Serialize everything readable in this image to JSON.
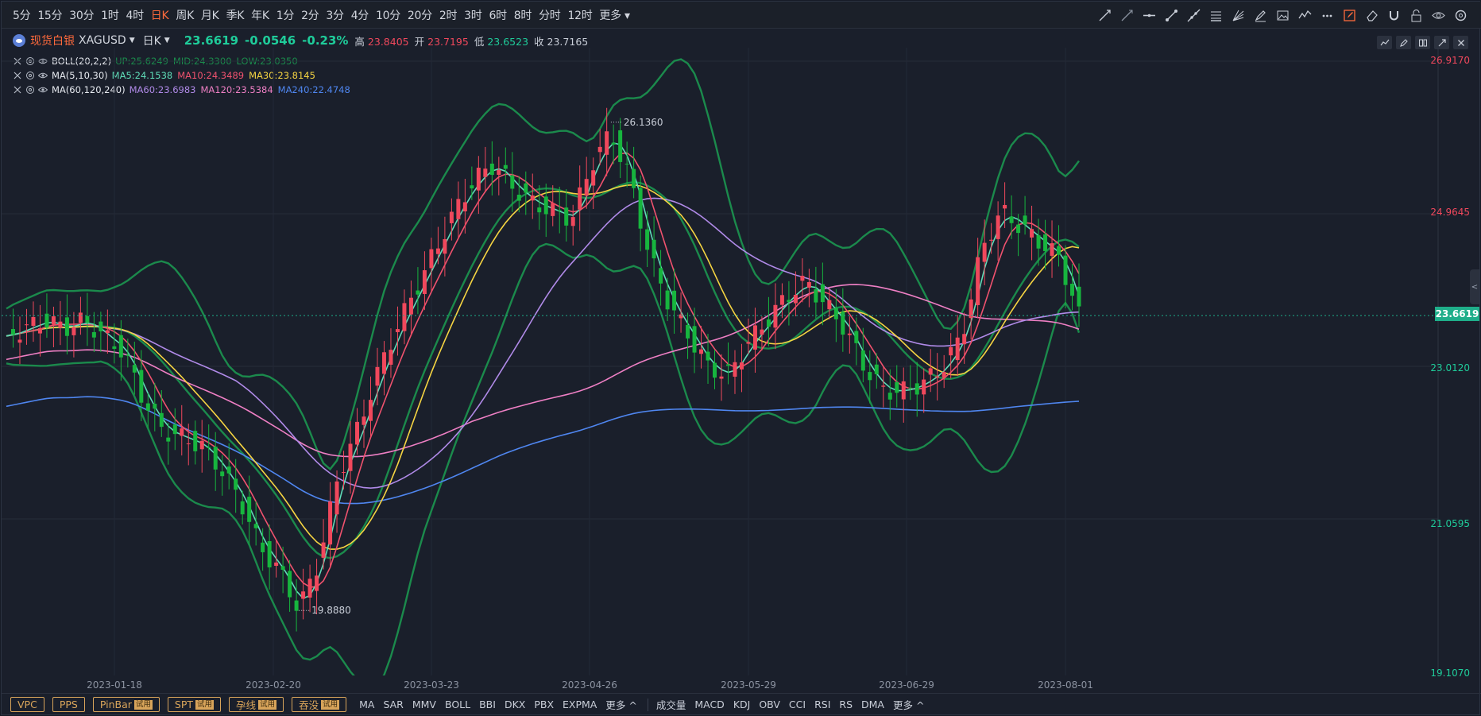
{
  "toolbar": {
    "periods": [
      "5分",
      "15分",
      "30分",
      "1时",
      "4时",
      "日K",
      "周K",
      "月K",
      "季K",
      "年K",
      "1分",
      "2分",
      "3分",
      "4分",
      "10分",
      "20分",
      "2时",
      "3时",
      "6时",
      "8时",
      "分时",
      "12时",
      "更多"
    ],
    "active_period": "日K",
    "tools": [
      "trend-line-icon",
      "ray-icon",
      "horizontal-line-icon",
      "segment-icon",
      "extended-line-icon",
      "fibonacci-icon",
      "fan-icon",
      "brush-icon",
      "image-icon",
      "wave-icon",
      "more-dots-icon",
      "draw-mode-icon",
      "eraser-icon",
      "magnet-icon",
      "lock-icon",
      "eye-icon",
      "settings-icon"
    ]
  },
  "symbol": {
    "name": "现货白银",
    "code": "XAGUSD",
    "period": "日K",
    "price": "23.6619",
    "change": "-0.0546",
    "change_pct": "-0.23%",
    "high_label": "高",
    "high": "23.8405",
    "open_label": "开",
    "open": "23.7195",
    "low_label": "低",
    "low": "23.6523",
    "close_label": "收",
    "close": "23.7165"
  },
  "legends": [
    {
      "name": "BOLL(20,2,2)",
      "values": [
        {
          "text": "UP:25.6249",
          "color": "#1b8a4c"
        },
        {
          "text": "MID:24.3300",
          "color": "#1b8a4c"
        },
        {
          "text": "LOW:23.0350",
          "color": "#1b8a4c"
        }
      ]
    },
    {
      "name": "MA(5,10,30)",
      "values": [
        {
          "text": "MA5:24.1538",
          "color": "#5fdcb8"
        },
        {
          "text": "MA10:24.3489",
          "color": "#f0526e"
        },
        {
          "text": "MA30:23.8145",
          "color": "#f5d442"
        }
      ]
    },
    {
      "name": "MA(60,120,240)",
      "values": [
        {
          "text": "MA60:23.6983",
          "color": "#b08ae8"
        },
        {
          "text": "MA120:23.5384",
          "color": "#ee7fc4"
        },
        {
          "text": "MA240:22.4748",
          "color": "#4f86f0"
        }
      ]
    }
  ],
  "price_axis": {
    "labels": [
      {
        "value": "26.9170",
        "color": "#f0485c"
      },
      {
        "value": "24.9645",
        "color": "#f0485c"
      },
      {
        "value": "23.0120",
        "color": "#1fcc9a"
      },
      {
        "value": "21.0595",
        "color": "#1fcc9a"
      },
      {
        "value": "19.1070",
        "color": "#1fcc9a"
      }
    ],
    "current": "23.6619"
  },
  "annotations": {
    "max": "26.1360",
    "min": "19.8880"
  },
  "dates": [
    "2023-01-18",
    "2023-02-20",
    "2023-03-23",
    "2023-04-26",
    "2023-05-29",
    "2023-06-29",
    "2023-08-01"
  ],
  "bottom": {
    "tag_buttons": [
      {
        "label": "VPC",
        "badge": ""
      },
      {
        "label": "PPS",
        "badge": ""
      },
      {
        "label": "PinBar",
        "badge": "试用"
      },
      {
        "label": "SPT",
        "badge": "试用"
      },
      {
        "label": "孕线",
        "badge": "试用"
      },
      {
        "label": "吞没",
        "badge": "试用"
      }
    ],
    "main_indicators": [
      "MA",
      "SAR",
      "MMV",
      "BOLL",
      "BBI",
      "DKX",
      "PBX",
      "EXPMA",
      "更多 ^"
    ],
    "sub_indicators": [
      "成交量",
      "MACD",
      "KDJ",
      "OBV",
      "CCI",
      "RSI",
      "RS",
      "DMA",
      "更多 ^"
    ]
  },
  "colors": {
    "up": "#f0485c",
    "down": "#1fcc9a",
    "candle_down": "#17b53e",
    "accent": "#ff6a3c"
  },
  "chart_data": {
    "type": "candlestick",
    "ylim": [
      19.107,
      26.917
    ],
    "x": [
      "2023-01-18",
      "2023-02-20",
      "2023-03-23",
      "2023-04-26",
      "2023-05-29",
      "2023-06-29",
      "2023-08-01"
    ],
    "close_approx": [
      23.4,
      23.5,
      23.6,
      23.5,
      23.6,
      23.4,
      23.2,
      22.6,
      22.2,
      22.1,
      22.0,
      21.7,
      21.3,
      20.7,
      20.4,
      19.9,
      20.5,
      21.6,
      22.2,
      22.9,
      23.5,
      24.0,
      24.5,
      25.0,
      25.4,
      25.6,
      25.3,
      25.1,
      25.0,
      24.9,
      25.6,
      26.0,
      25.4,
      24.4,
      23.8,
      23.4,
      23.0,
      22.9,
      23.3,
      23.6,
      23.9,
      24.1,
      23.8,
      23.5,
      23.0,
      22.7,
      22.7,
      22.8,
      23.0,
      23.4,
      24.5,
      25.0,
      24.8,
      24.6,
      24.4,
      23.66
    ]
  }
}
